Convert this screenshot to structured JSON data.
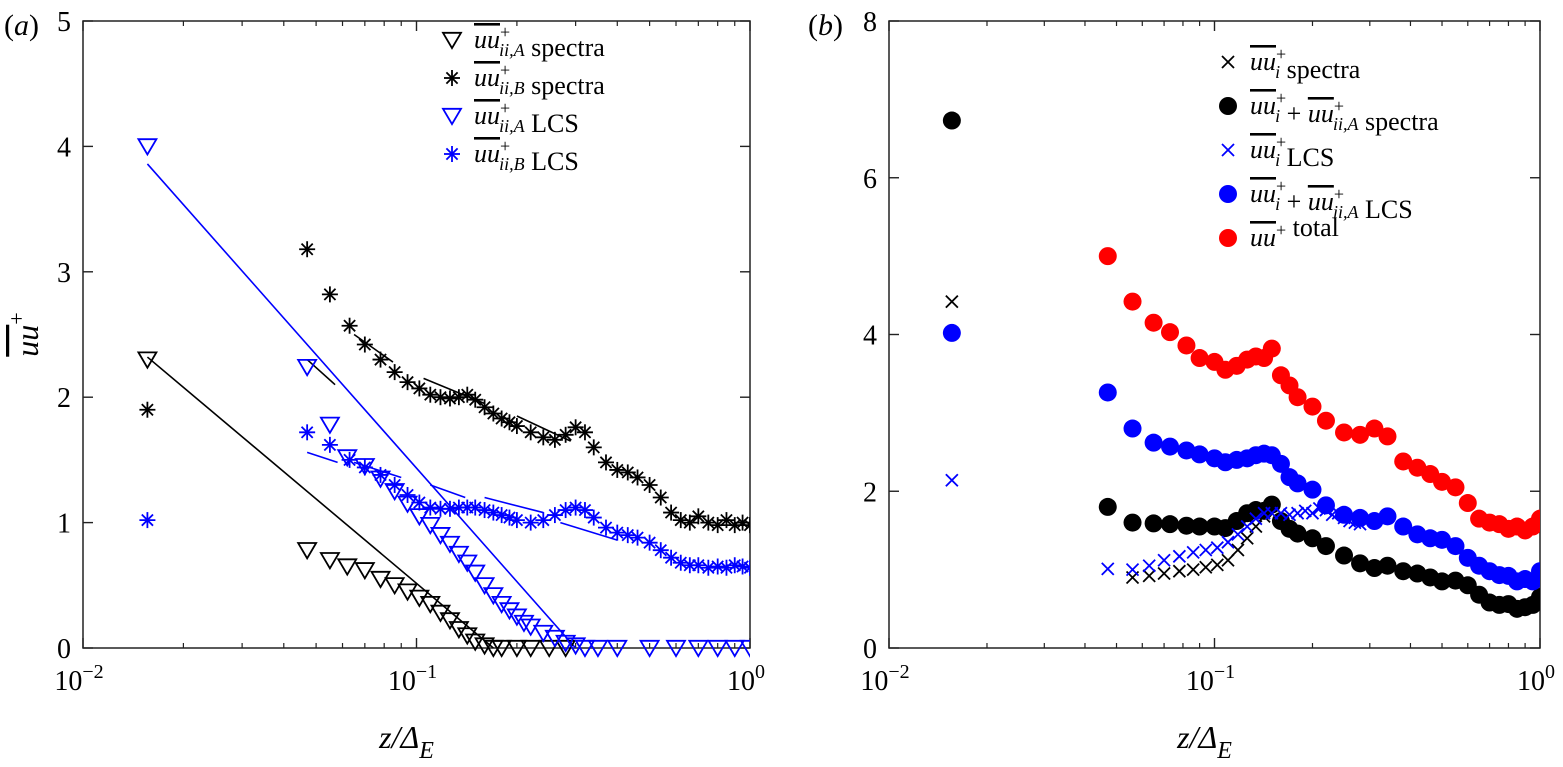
{
  "chart_data": [
    {
      "type": "scatter",
      "panel_label": "(a)",
      "xlabel": "z/Δ_E",
      "ylabel": "uu⁺ (overbar)",
      "xscale": "log",
      "xlim": [
        0.01,
        1
      ],
      "ylim": [
        0,
        5
      ],
      "xticks": [
        {
          "v": 0.01,
          "base": "10",
          "exp": "−2"
        },
        {
          "v": 0.1,
          "base": "10",
          "exp": "−1"
        },
        {
          "v": 1,
          "base": "10",
          "exp": "0"
        }
      ],
      "yticks": [
        0,
        1,
        2,
        3,
        4,
        5
      ],
      "grid": false,
      "legend_position": "top-right",
      "legend": [
        {
          "marker": "triangle-down",
          "color": "#000000",
          "label_main": "uu",
          "label_sup": "+",
          "label_sub": "ii,A",
          "label_suffix": " spectra"
        },
        {
          "marker": "asterisk",
          "color": "#000000",
          "label_main": "uu",
          "label_sup": "+",
          "label_sub": "ii,B",
          "label_suffix": " spectra"
        },
        {
          "marker": "triangle-down",
          "color": "#0000ff",
          "label_main": "uu",
          "label_sup": "+",
          "label_sub": "ii,A",
          "label_suffix": " LCS"
        },
        {
          "marker": "asterisk",
          "color": "#0000ff",
          "label_main": "uu",
          "label_sup": "+",
          "label_sub": "ii,B",
          "label_suffix": " LCS"
        }
      ],
      "series": [
        {
          "name": "uu_ii,A spectra",
          "marker": "triangle-down",
          "color": "#000000",
          "x": [
            0.0156,
            0.047,
            0.055,
            0.062,
            0.07,
            0.078,
            0.086,
            0.094,
            0.102,
            0.11,
            0.118,
            0.126,
            0.134,
            0.142,
            0.15,
            0.16,
            0.17,
            0.18,
            0.2,
            0.22,
            0.25,
            0.28
          ],
          "y": [
            2.3,
            0.78,
            0.7,
            0.65,
            0.62,
            0.55,
            0.5,
            0.45,
            0.4,
            0.35,
            0.28,
            0.22,
            0.15,
            0.1,
            0.05,
            0.02,
            0,
            0,
            0,
            0,
            0,
            0
          ]
        },
        {
          "name": "uu_ii,B spectra",
          "marker": "asterisk",
          "color": "#000000",
          "x": [
            0.0156,
            0.047,
            0.055,
            0.063,
            0.07,
            0.078,
            0.086,
            0.094,
            0.102,
            0.11,
            0.118,
            0.126,
            0.134,
            0.142,
            0.15,
            0.16,
            0.17,
            0.18,
            0.19,
            0.2,
            0.22,
            0.24,
            0.26,
            0.28,
            0.3,
            0.32,
            0.34,
            0.37,
            0.4,
            0.43,
            0.46,
            0.5,
            0.54,
            0.58,
            0.62,
            0.66,
            0.7,
            0.75,
            0.8,
            0.85,
            0.9,
            0.95,
            1.0
          ],
          "y": [
            1.9,
            3.18,
            2.82,
            2.57,
            2.42,
            2.3,
            2.2,
            2.12,
            2.07,
            2.02,
            2.0,
            1.99,
            2.0,
            2.02,
            1.98,
            1.92,
            1.87,
            1.83,
            1.8,
            1.77,
            1.72,
            1.68,
            1.66,
            1.7,
            1.76,
            1.72,
            1.6,
            1.48,
            1.42,
            1.4,
            1.36,
            1.3,
            1.2,
            1.08,
            1.02,
            1.0,
            1.05,
            1.0,
            0.98,
            1.02,
            0.98,
            1.0,
            0.98
          ]
        },
        {
          "name": "uu_ii,A LCS",
          "marker": "triangle-down",
          "color": "#0000ff",
          "x": [
            0.0156,
            0.047,
            0.055,
            0.062,
            0.07,
            0.078,
            0.086,
            0.094,
            0.102,
            0.11,
            0.118,
            0.126,
            0.134,
            0.142,
            0.15,
            0.16,
            0.17,
            0.18,
            0.19,
            0.2,
            0.21,
            0.22,
            0.24,
            0.26,
            0.28,
            0.3,
            0.32,
            0.35,
            0.4,
            0.5,
            0.6,
            0.7,
            0.8,
            0.9,
            1.0
          ],
          "y": [
            4.0,
            2.24,
            1.78,
            1.52,
            1.45,
            1.35,
            1.25,
            1.15,
            1.05,
            0.98,
            0.9,
            0.83,
            0.75,
            0.68,
            0.6,
            0.5,
            0.42,
            0.35,
            0.3,
            0.25,
            0.2,
            0.17,
            0.12,
            0.08,
            0.04,
            0.02,
            0,
            0,
            0,
            0,
            0,
            0,
            0,
            0,
            0
          ]
        },
        {
          "name": "uu_ii,B LCS",
          "marker": "asterisk",
          "color": "#0000ff",
          "x": [
            0.0156,
            0.047,
            0.055,
            0.063,
            0.07,
            0.078,
            0.086,
            0.094,
            0.102,
            0.11,
            0.118,
            0.126,
            0.134,
            0.142,
            0.15,
            0.16,
            0.17,
            0.18,
            0.19,
            0.2,
            0.22,
            0.24,
            0.26,
            0.28,
            0.3,
            0.32,
            0.34,
            0.37,
            0.4,
            0.43,
            0.46,
            0.5,
            0.54,
            0.58,
            0.62,
            0.66,
            0.7,
            0.75,
            0.8,
            0.85,
            0.9,
            0.95,
            1.0
          ],
          "y": [
            1.02,
            1.72,
            1.62,
            1.5,
            1.44,
            1.38,
            1.3,
            1.22,
            1.16,
            1.12,
            1.11,
            1.11,
            1.12,
            1.12,
            1.12,
            1.1,
            1.08,
            1.06,
            1.04,
            1.02,
            1.0,
            1.02,
            1.06,
            1.1,
            1.12,
            1.1,
            1.04,
            0.96,
            0.92,
            0.9,
            0.88,
            0.84,
            0.78,
            0.72,
            0.68,
            0.66,
            0.66,
            0.64,
            0.65,
            0.64,
            0.66,
            0.65,
            0.64
          ]
        }
      ],
      "fit_lines": [
        {
          "color": "#0000ff",
          "x": [
            0.0156,
            0.3
          ],
          "y": [
            3.86,
            0
          ]
        },
        {
          "color": "#000000",
          "x": [
            0.0156,
            0.17
          ],
          "y": [
            2.32,
            0
          ]
        },
        {
          "color": "#000000",
          "x": [
            0.047,
            0.057
          ],
          "y": [
            2.3,
            2.1
          ]
        },
        {
          "color": "#000000",
          "x": [
            0.065,
            0.085
          ],
          "y": [
            2.5,
            2.28
          ]
        },
        {
          "color": "#000000",
          "x": [
            0.105,
            0.16
          ],
          "y": [
            2.15,
            1.95
          ]
        },
        {
          "color": "#000000",
          "x": [
            0.2,
            0.29
          ],
          "y": [
            1.85,
            1.65
          ]
        },
        {
          "color": "#0000ff",
          "x": [
            0.047,
            0.058
          ],
          "y": [
            1.56,
            1.48
          ]
        },
        {
          "color": "#0000ff",
          "x": [
            0.065,
            0.09
          ],
          "y": [
            1.48,
            1.36
          ]
        },
        {
          "color": "#0000ff",
          "x": [
            0.11,
            0.14
          ],
          "y": [
            1.3,
            1.2
          ]
        },
        {
          "color": "#0000ff",
          "x": [
            0.16,
            0.24
          ],
          "y": [
            1.2,
            1.08
          ]
        },
        {
          "color": "#0000ff",
          "x": [
            0.27,
            0.4
          ],
          "y": [
            1.0,
            0.86
          ]
        }
      ]
    },
    {
      "type": "scatter",
      "panel_label": "(b)",
      "xlabel": "z/Δ_E",
      "ylabel": "",
      "xscale": "log",
      "xlim": [
        0.01,
        1
      ],
      "ylim": [
        0,
        8
      ],
      "xticks": [
        {
          "v": 0.01,
          "base": "10",
          "exp": "−2"
        },
        {
          "v": 0.1,
          "base": "10",
          "exp": "−1"
        },
        {
          "v": 1,
          "base": "10",
          "exp": "0"
        }
      ],
      "yticks": [
        0,
        2,
        4,
        6,
        8
      ],
      "grid": false,
      "legend_position": "top-right",
      "legend": [
        {
          "marker": "x",
          "color": "#000000",
          "label_main": "uu",
          "label_sup": "+",
          "label_sub": "i",
          "label_suffix": " spectra"
        },
        {
          "marker": "dot",
          "color": "#000000",
          "label_main": "uu",
          "label_sup": "+",
          "label_sub": "i",
          "label_plus": " + ",
          "label_main2": "uu",
          "label_sup2": "+",
          "label_sub2": "ii,A",
          "label_suffix": " spectra"
        },
        {
          "marker": "x",
          "color": "#0000ff",
          "label_main": "uu",
          "label_sup": "+",
          "label_sub": "i",
          "label_suffix": " LCS"
        },
        {
          "marker": "dot",
          "color": "#0000ff",
          "label_main": "uu",
          "label_sup": "+",
          "label_sub": "i",
          "label_plus": " + ",
          "label_main2": "uu",
          "label_sup2": "+",
          "label_sub2": "ii,A",
          "label_suffix": " LCS"
        },
        {
          "marker": "dot",
          "color": "#ff0000",
          "label_main": "uu",
          "label_sup": "+",
          "label_sub": "",
          "label_suffix": " total"
        }
      ],
      "series": [
        {
          "name": "uu_i spectra",
          "marker": "x",
          "color": "#000000",
          "x": [
            0.0156,
            0.056,
            0.063,
            0.07,
            0.078,
            0.086,
            0.094,
            0.102,
            0.11,
            0.118,
            0.126,
            0.134,
            0.142
          ],
          "y": [
            4.42,
            0.9,
            0.92,
            0.95,
            0.98,
            1.0,
            1.03,
            1.06,
            1.12,
            1.25,
            1.4,
            1.55,
            1.68
          ]
        },
        {
          "name": "uu_i + uu_ii,A spectra",
          "marker": "dot",
          "color": "#000000",
          "x": [
            0.0156,
            0.047,
            0.056,
            0.065,
            0.073,
            0.082,
            0.09,
            0.1,
            0.108,
            0.117,
            0.126,
            0.134,
            0.142,
            0.15,
            0.16,
            0.17,
            0.18,
            0.2,
            0.22,
            0.25,
            0.28,
            0.31,
            0.34,
            0.38,
            0.42,
            0.46,
            0.5,
            0.55,
            0.6,
            0.65,
            0.7,
            0.75,
            0.8,
            0.85,
            0.9,
            0.95,
            1.0
          ],
          "y": [
            6.73,
            1.8,
            1.6,
            1.59,
            1.58,
            1.56,
            1.55,
            1.55,
            1.53,
            1.62,
            1.72,
            1.76,
            1.75,
            1.83,
            1.62,
            1.52,
            1.46,
            1.4,
            1.3,
            1.18,
            1.08,
            1.02,
            1.05,
            0.98,
            0.95,
            0.9,
            0.85,
            0.86,
            0.8,
            0.68,
            0.58,
            0.55,
            0.56,
            0.5,
            0.52,
            0.55,
            0.65
          ]
        },
        {
          "name": "uu_i LCS",
          "marker": "x",
          "color": "#0000ff",
          "x": [
            0.0156,
            0.047,
            0.056,
            0.063,
            0.07,
            0.078,
            0.086,
            0.094,
            0.102,
            0.11,
            0.118,
            0.126,
            0.134,
            0.142,
            0.15,
            0.16,
            0.17,
            0.18,
            0.19,
            0.2,
            0.21,
            0.22,
            0.23,
            0.24,
            0.25,
            0.26,
            0.27,
            0.28
          ],
          "y": [
            2.14,
            1.01,
            1.0,
            1.05,
            1.12,
            1.17,
            1.22,
            1.25,
            1.28,
            1.35,
            1.45,
            1.55,
            1.65,
            1.72,
            1.72,
            1.72,
            1.7,
            1.72,
            1.75,
            1.72,
            1.78,
            1.76,
            1.7,
            1.72,
            1.66,
            1.62,
            1.6,
            1.58
          ]
        },
        {
          "name": "uu_i + uu_ii,A LCS",
          "marker": "dot",
          "color": "#0000ff",
          "x": [
            0.0156,
            0.047,
            0.056,
            0.065,
            0.073,
            0.082,
            0.09,
            0.1,
            0.108,
            0.117,
            0.126,
            0.134,
            0.142,
            0.15,
            0.16,
            0.17,
            0.18,
            0.2,
            0.22,
            0.25,
            0.28,
            0.31,
            0.34,
            0.38,
            0.42,
            0.46,
            0.5,
            0.55,
            0.6,
            0.65,
            0.7,
            0.75,
            0.8,
            0.85,
            0.9,
            0.95,
            1.0
          ],
          "y": [
            4.02,
            3.26,
            2.8,
            2.62,
            2.57,
            2.52,
            2.47,
            2.42,
            2.37,
            2.4,
            2.42,
            2.46,
            2.48,
            2.46,
            2.35,
            2.18,
            2.1,
            2.02,
            1.82,
            1.7,
            1.66,
            1.62,
            1.68,
            1.55,
            1.45,
            1.4,
            1.38,
            1.3,
            1.15,
            1.05,
            0.98,
            0.93,
            0.92,
            0.85,
            0.88,
            0.85,
            0.98
          ]
        },
        {
          "name": "uu total",
          "marker": "dot",
          "color": "#ff0000",
          "x": [
            0.0156,
            0.047,
            0.056,
            0.065,
            0.073,
            0.082,
            0.09,
            0.1,
            0.108,
            0.117,
            0.126,
            0.134,
            0.142,
            0.15,
            0.16,
            0.17,
            0.18,
            0.2,
            0.22,
            0.25,
            0.28,
            0.31,
            0.34,
            0.38,
            0.42,
            0.46,
            0.5,
            0.55,
            0.6,
            0.65,
            0.7,
            0.75,
            0.8,
            0.85,
            0.9,
            0.95,
            1.0
          ],
          "y": [
            null,
            5.0,
            4.42,
            4.15,
            4.03,
            3.86,
            3.7,
            3.65,
            3.55,
            3.6,
            3.68,
            3.72,
            3.7,
            3.82,
            3.48,
            3.35,
            3.2,
            3.08,
            2.9,
            2.75,
            2.72,
            2.8,
            2.7,
            2.38,
            2.3,
            2.22,
            2.12,
            2.05,
            1.85,
            1.65,
            1.6,
            1.58,
            1.52,
            1.55,
            1.5,
            1.55,
            1.65
          ]
        }
      ]
    }
  ]
}
